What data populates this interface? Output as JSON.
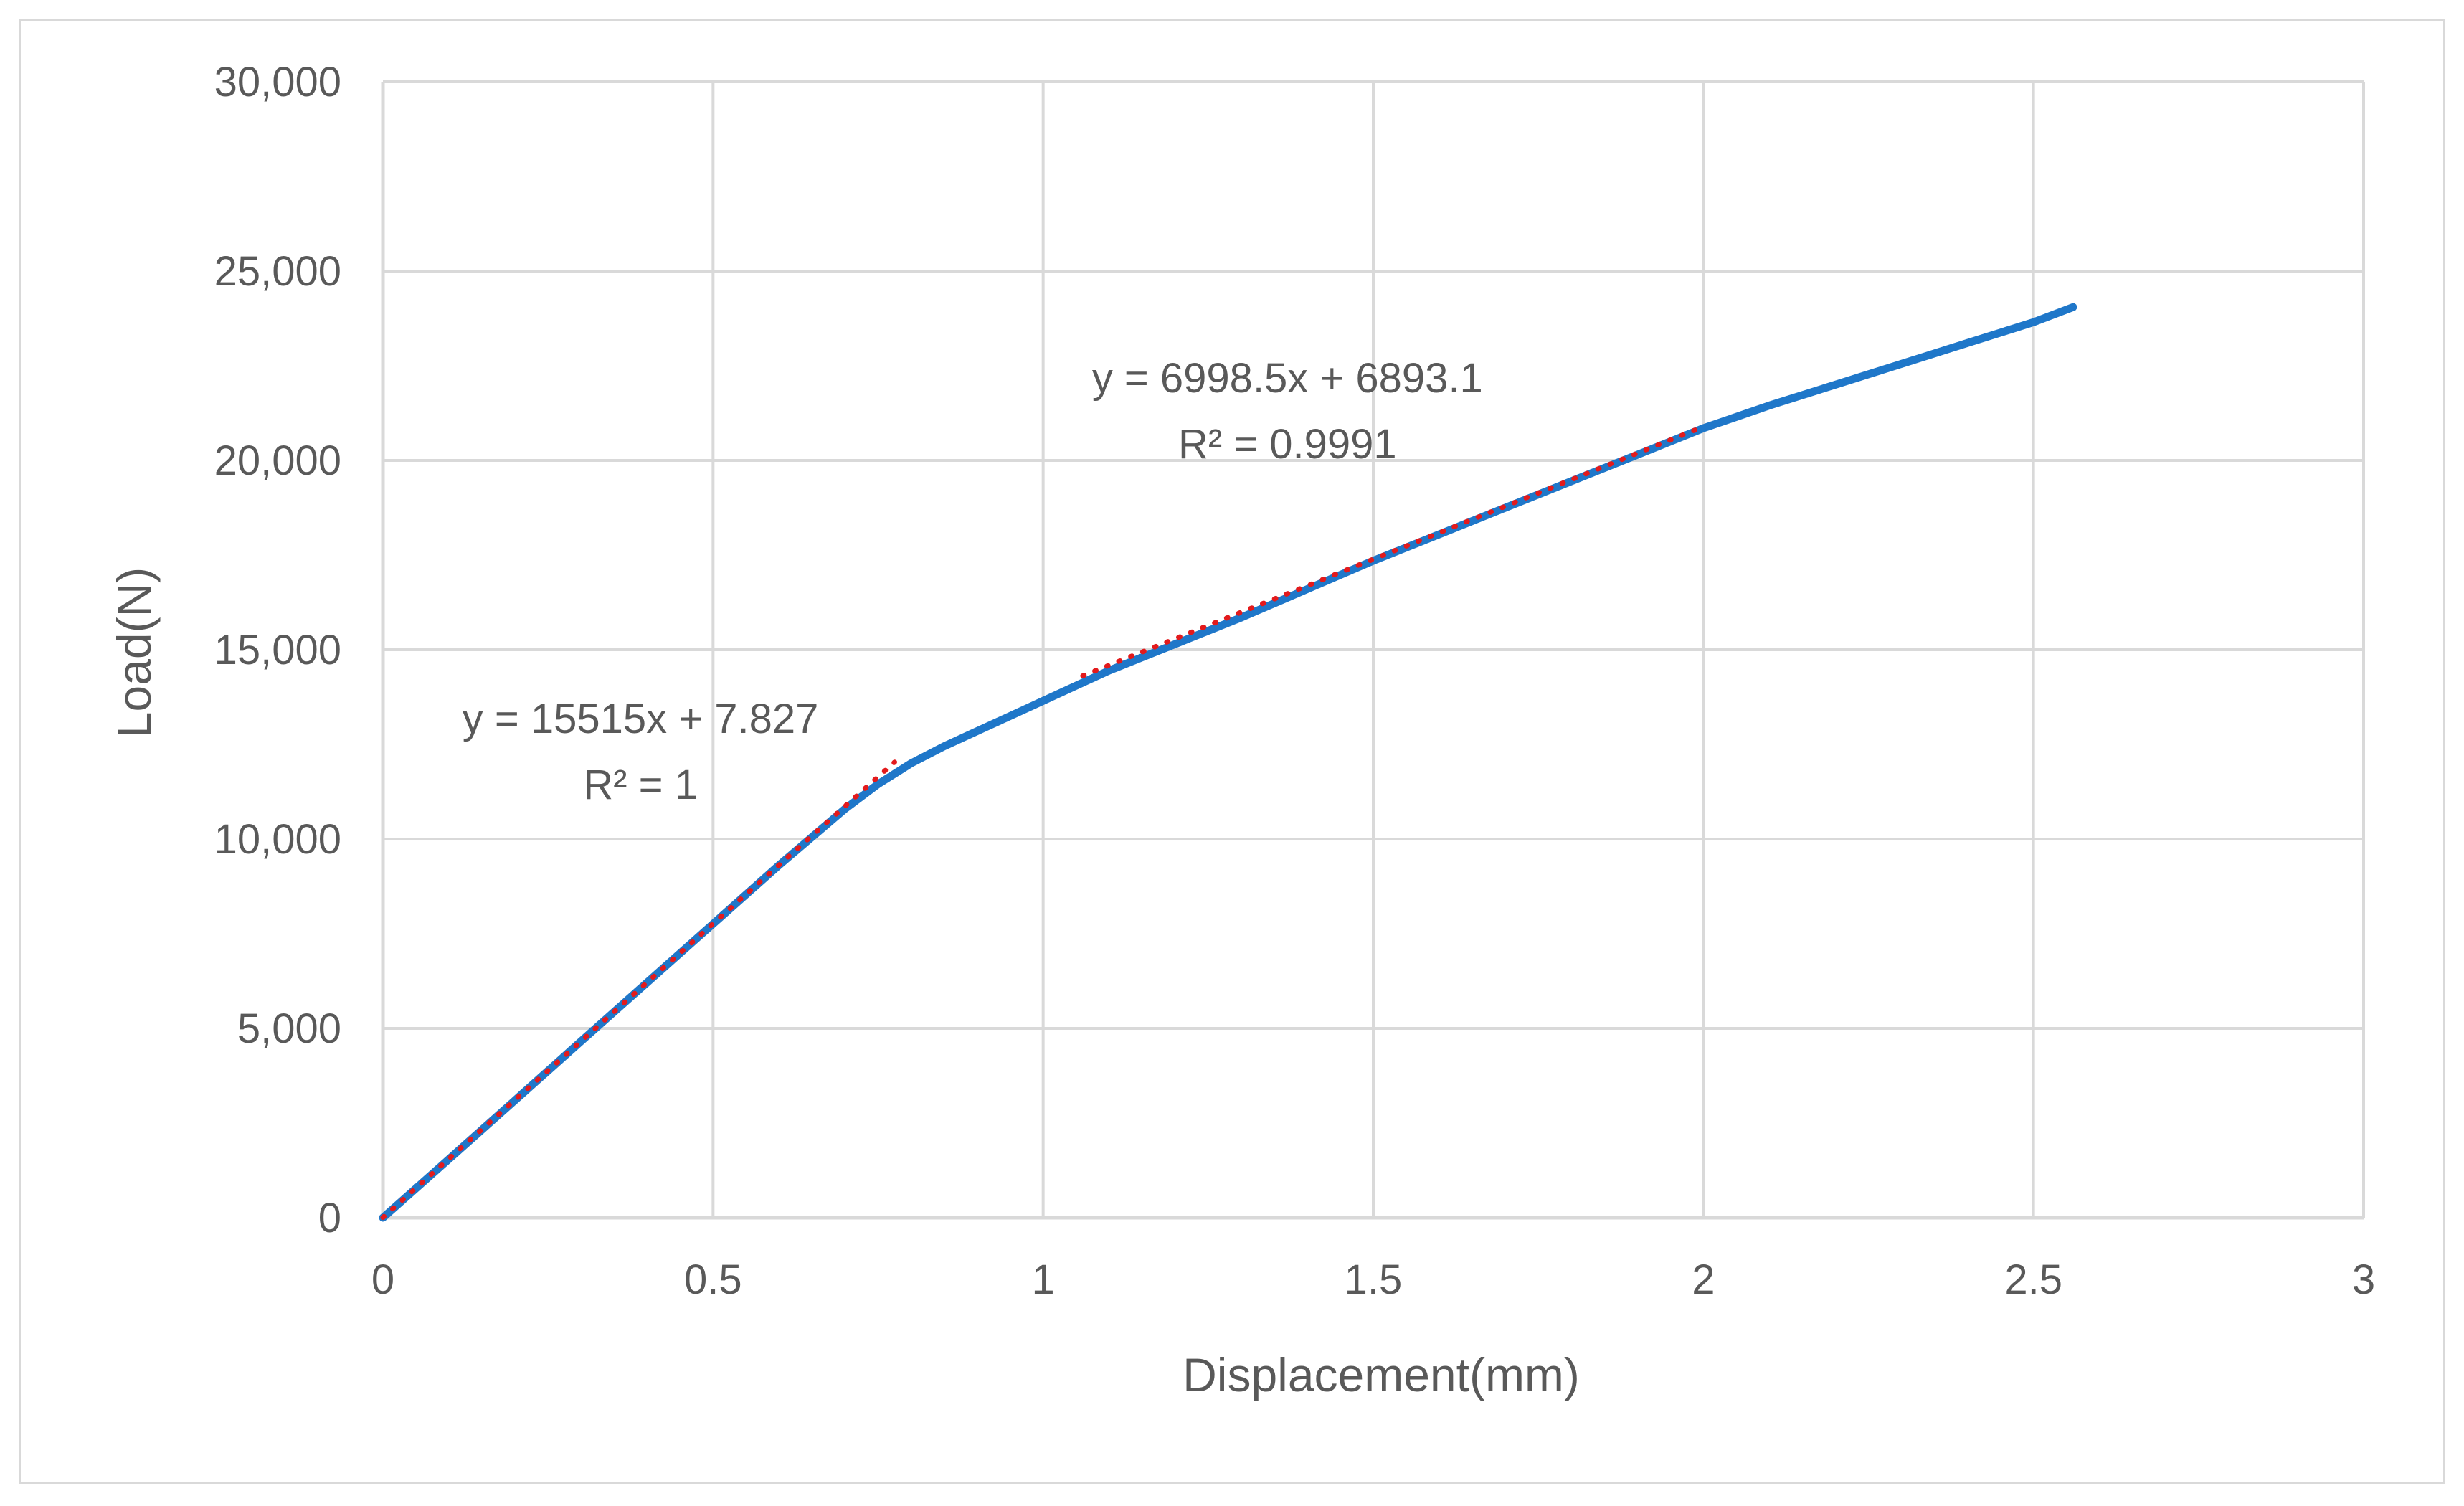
{
  "chart_data": {
    "type": "line",
    "xlabel": "Displacement(mm)",
    "ylabel": "Load(N)",
    "xlim": [
      0,
      3
    ],
    "ylim": [
      0,
      30000
    ],
    "x_ticks": [
      0,
      0.5,
      1,
      1.5,
      2,
      2.5,
      3
    ],
    "x_tick_labels": [
      "0",
      "0.5",
      "1",
      "1.5",
      "2",
      "2.5",
      "3"
    ],
    "y_ticks": [
      0,
      5000,
      10000,
      15000,
      20000,
      25000,
      30000
    ],
    "y_tick_labels": [
      "0",
      "5,000",
      "10,000",
      "15,000",
      "20,000",
      "25,000",
      "30,000"
    ],
    "grid": true,
    "legend": "none",
    "series": [
      {
        "color": "#1f77c9",
        "x": [
          0,
          0.1,
          0.2,
          0.3,
          0.4,
          0.5,
          0.6,
          0.7,
          0.75,
          0.8,
          0.85,
          0.9,
          1.0,
          1.1,
          1.2,
          1.3,
          1.4,
          1.5,
          1.6,
          1.7,
          1.8,
          1.9,
          2.0,
          2.1,
          2.2,
          2.3,
          2.4,
          2.5,
          2.56
        ],
        "y": [
          0,
          1550,
          3100,
          4660,
          6210,
          7760,
          9310,
          10800,
          11450,
          12000,
          12450,
          12850,
          13650,
          14450,
          15150,
          15850,
          16600,
          17350,
          18050,
          18750,
          19450,
          20150,
          20850,
          21450,
          22000,
          22550,
          23100,
          23650,
          24050
        ]
      }
    ],
    "trendlines": [
      {
        "color": "#e31a1c",
        "style": "dotted",
        "slope": 15515,
        "intercept": 7.827,
        "x_range": [
          0,
          0.775
        ],
        "equation": "y = 15515x + 7.827",
        "r2": "R² = 1",
        "label_anchor": [
          0.39,
          12800
        ]
      },
      {
        "color": "#e31a1c",
        "style": "dotted",
        "slope": 6998.5,
        "intercept": 6893.1,
        "x_range": [
          1.06,
          2.0
        ],
        "equation": "y = 6998.5x + 6893.1",
        "r2": "R² = 0.9991",
        "label_anchor": [
          1.37,
          21800
        ]
      }
    ]
  },
  "colors": {
    "grid": "#d9d9d9",
    "text": "#595959",
    "series": "#1f77c9",
    "trend": "#e31a1c"
  }
}
